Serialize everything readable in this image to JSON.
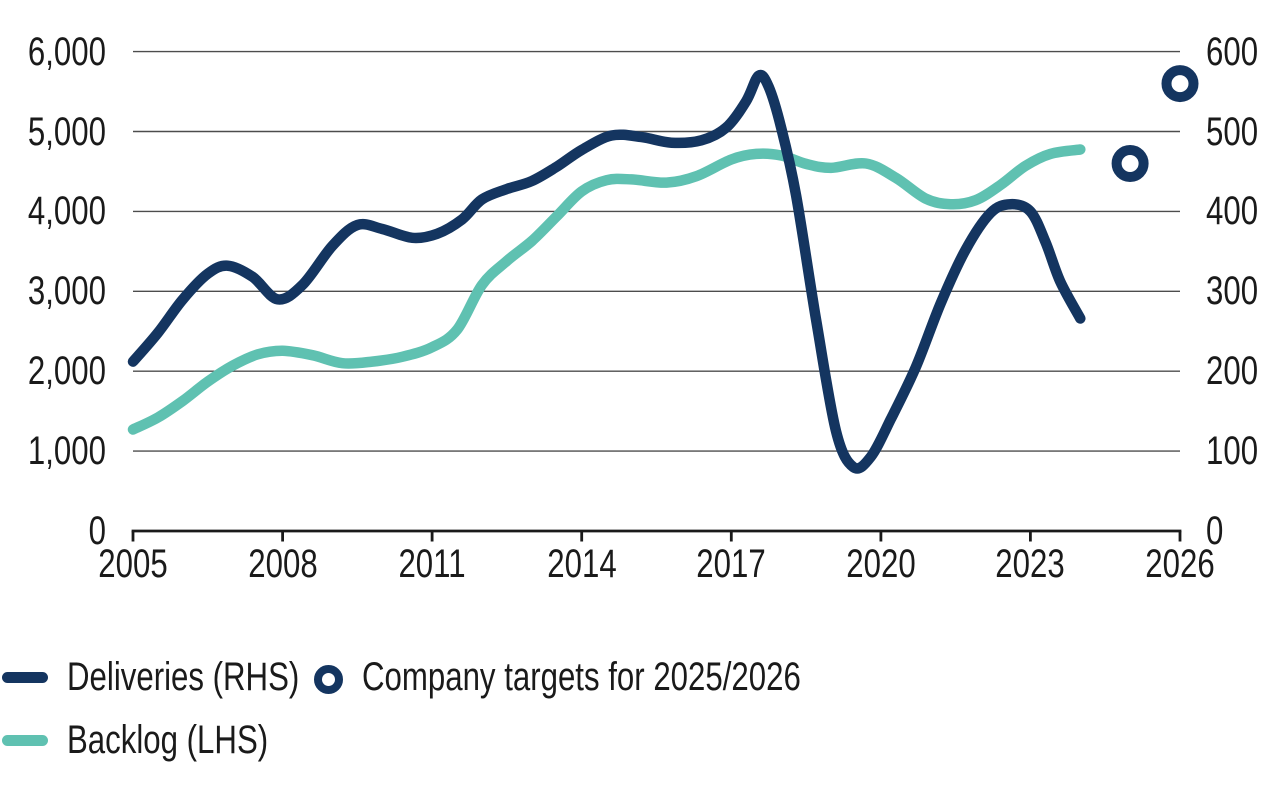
{
  "colors": {
    "navy": "#143560",
    "teal": "#5fc1b1",
    "gridline": "#4d4d4d",
    "axis": "#1a1a1a",
    "text": "#1a1a1a",
    "background": "#ffffff"
  },
  "chart_data": {
    "type": "line",
    "title": "",
    "grid": "horizontal",
    "x_axis": {
      "tick_labels": [
        "2005",
        "2008",
        "2011",
        "2014",
        "2017",
        "2020",
        "2023",
        "2026"
      ],
      "tick_years": [
        2005,
        2008,
        2011,
        2014,
        2017,
        2020,
        2023,
        2026
      ],
      "range": [
        2005,
        2026
      ]
    },
    "left_axis": {
      "tick_labels": [
        "0",
        "1,000",
        "2,000",
        "3,000",
        "4,000",
        "5,000",
        "6,000"
      ],
      "tick_values": [
        0,
        1000,
        2000,
        3000,
        4000,
        5000,
        6000
      ],
      "range": [
        0,
        6000
      ],
      "series_name": "Backlog (LHS)"
    },
    "right_axis": {
      "tick_labels": [
        "0",
        "100",
        "200",
        "300",
        "400",
        "500",
        "600"
      ],
      "tick_values": [
        0,
        100,
        200,
        300,
        400,
        500,
        600
      ],
      "range": [
        0,
        600
      ],
      "series_name": "Deliveries (RHS)"
    },
    "series": [
      {
        "name": "Deliveries (RHS)",
        "axis": "right",
        "style": "line",
        "color_key": "navy",
        "points": [
          [
            2005.0,
            212
          ],
          [
            2005.5,
            248
          ],
          [
            2006.0,
            290
          ],
          [
            2006.5,
            322
          ],
          [
            2006.9,
            332
          ],
          [
            2007.4,
            318
          ],
          [
            2007.9,
            290
          ],
          [
            2008.4,
            308
          ],
          [
            2009.0,
            357
          ],
          [
            2009.5,
            383
          ],
          [
            2010.0,
            378
          ],
          [
            2010.6,
            367
          ],
          [
            2011.1,
            372
          ],
          [
            2011.6,
            390
          ],
          [
            2012.0,
            415
          ],
          [
            2012.5,
            428
          ],
          [
            2013.0,
            438
          ],
          [
            2013.5,
            456
          ],
          [
            2014.0,
            477
          ],
          [
            2014.6,
            495
          ],
          [
            2015.2,
            493
          ],
          [
            2015.8,
            486
          ],
          [
            2016.4,
            489
          ],
          [
            2016.9,
            505
          ],
          [
            2017.3,
            538
          ],
          [
            2017.55,
            570
          ],
          [
            2017.75,
            556
          ],
          [
            2018.0,
            505
          ],
          [
            2018.3,
            420
          ],
          [
            2018.7,
            265
          ],
          [
            2019.1,
            125
          ],
          [
            2019.45,
            80
          ],
          [
            2019.8,
            93
          ],
          [
            2020.2,
            140
          ],
          [
            2020.7,
            205
          ],
          [
            2021.2,
            285
          ],
          [
            2021.7,
            352
          ],
          [
            2022.2,
            398
          ],
          [
            2022.6,
            409
          ],
          [
            2023.0,
            400
          ],
          [
            2023.3,
            362
          ],
          [
            2023.6,
            312
          ],
          [
            2024.0,
            266
          ]
        ]
      },
      {
        "name": "Backlog (LHS)",
        "axis": "left",
        "style": "line",
        "color_key": "teal",
        "points": [
          [
            2005.0,
            1270
          ],
          [
            2005.5,
            1420
          ],
          [
            2006.0,
            1630
          ],
          [
            2006.5,
            1870
          ],
          [
            2007.0,
            2070
          ],
          [
            2007.5,
            2210
          ],
          [
            2008.0,
            2255
          ],
          [
            2008.6,
            2200
          ],
          [
            2009.2,
            2100
          ],
          [
            2009.8,
            2120
          ],
          [
            2010.4,
            2180
          ],
          [
            2011.0,
            2300
          ],
          [
            2011.5,
            2520
          ],
          [
            2012.0,
            3080
          ],
          [
            2012.5,
            3380
          ],
          [
            2013.0,
            3630
          ],
          [
            2013.5,
            3940
          ],
          [
            2014.0,
            4250
          ],
          [
            2014.5,
            4390
          ],
          [
            2015.0,
            4400
          ],
          [
            2015.7,
            4360
          ],
          [
            2016.3,
            4440
          ],
          [
            2017.0,
            4650
          ],
          [
            2017.5,
            4720
          ],
          [
            2018.0,
            4700
          ],
          [
            2018.5,
            4595
          ],
          [
            2019.0,
            4545
          ],
          [
            2019.7,
            4600
          ],
          [
            2020.3,
            4420
          ],
          [
            2020.9,
            4160
          ],
          [
            2021.4,
            4090
          ],
          [
            2021.9,
            4140
          ],
          [
            2022.4,
            4330
          ],
          [
            2022.9,
            4570
          ],
          [
            2023.4,
            4720
          ],
          [
            2024.0,
            4775
          ]
        ]
      },
      {
        "name": "Company targets for 2025/2026",
        "axis": "right",
        "style": "ring-markers",
        "color_key": "navy",
        "points": [
          [
            2025,
            460
          ],
          [
            2026,
            560
          ]
        ]
      }
    ]
  },
  "legend": {
    "items": [
      {
        "label": "Deliveries (RHS)",
        "marker": "line",
        "color_key": "navy"
      },
      {
        "label": "Backlog (LHS)",
        "marker": "line",
        "color_key": "teal"
      },
      {
        "label": "Company targets for 2025/2026",
        "marker": "ring",
        "color_key": "navy"
      }
    ]
  }
}
